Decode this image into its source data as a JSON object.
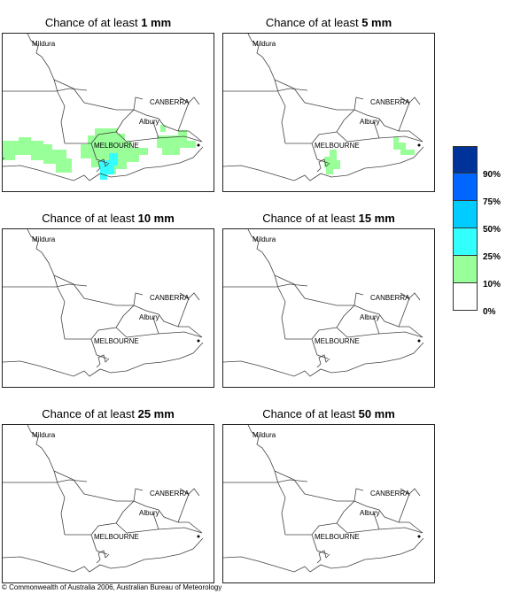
{
  "panels": [
    {
      "title_prefix": "Chance of at least ",
      "amount": "1 mm"
    },
    {
      "title_prefix": "Chance of at least ",
      "amount": "5 mm"
    },
    {
      "title_prefix": "Chance of at least ",
      "amount": "10 mm"
    },
    {
      "title_prefix": "Chance of at least ",
      "amount": "15 mm"
    },
    {
      "title_prefix": "Chance of at least ",
      "amount": "25 mm"
    },
    {
      "title_prefix": "Chance of at least ",
      "amount": "50 mm"
    }
  ],
  "map_labels": {
    "mildura": "Mildura",
    "canberra": "CANBERRA",
    "albury": "Albury",
    "melbourne": "MELBOURNE"
  },
  "legend": {
    "colors": [
      "#003399",
      "#0066ff",
      "#00ccff",
      "#33ffff",
      "#99ff99",
      "#ffffff"
    ],
    "ticks": [
      "90%",
      "75%",
      "50%",
      "25%",
      "10%",
      "0%"
    ]
  },
  "footer": "© Commonwealth of Australia 2006, Australian Bureau of Meteorology"
}
